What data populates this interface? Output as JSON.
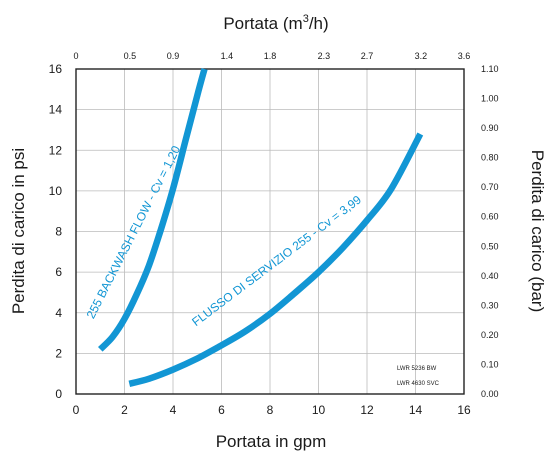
{
  "chart_data": {
    "type": "line",
    "title": "",
    "colors": {
      "series": "#1296d4",
      "frame": "#222222",
      "grid": "#bbbbbb"
    },
    "grid": true,
    "xlabel": "Portata in gpm",
    "ylabel": "Perdita di carico in psi",
    "x2label_main": "Portata (m",
    "x2label_sup": "3",
    "x2label_tail": "/h)",
    "y2label": "Perdita di carico (bar)",
    "xlim": [
      0,
      16
    ],
    "ylim": [
      0,
      16
    ],
    "x_ticks": [
      0,
      2,
      4,
      6,
      8,
      10,
      12,
      14,
      16
    ],
    "x_tick_labels": [
      "0",
      "2",
      "4",
      "6",
      "8",
      "10",
      "12",
      "14",
      "16"
    ],
    "y_ticks": [
      0,
      2,
      4,
      6,
      8,
      10,
      12,
      14,
      16
    ],
    "y_tick_labels": [
      "0",
      "2",
      "4",
      "6",
      "8",
      "10",
      "12",
      "14",
      "16"
    ],
    "top_ticks": [
      0,
      0.5,
      0.9,
      1.4,
      1.8,
      2.3,
      2.7,
      3.2,
      3.6
    ],
    "top_tick_labels": [
      "0",
      "0.5",
      "0.9",
      "1.4",
      "1.8",
      "2.3",
      "2.7",
      "3.2",
      "3.6"
    ],
    "right_ticks": [
      0,
      0.1,
      0.2,
      0.3,
      0.4,
      0.5,
      0.6,
      0.7,
      0.8,
      0.9,
      1.0,
      1.1
    ],
    "right_tick_labels": [
      "0.00",
      "0.10",
      "0.20",
      "0.30",
      "0.40",
      "0.50",
      "0.60",
      "0.70",
      "0.80",
      "0.90",
      "1.00",
      "1.10"
    ],
    "series": [
      {
        "name": "255 BACKWASH FLOW - Cv = 1,20",
        "cv": 1.2,
        "x": [
          1.0,
          1.5,
          2.0,
          2.5,
          3.0,
          3.5,
          4.0,
          4.5,
          5.0,
          5.3
        ],
        "y": [
          2.2,
          2.8,
          3.7,
          4.9,
          6.3,
          8.1,
          10.1,
          12.4,
          14.7,
          16.0
        ]
      },
      {
        "name": "FLUSSO DI SERVIZIO 255 - Cv = 3,99",
        "cv": 3.99,
        "x": [
          2.2,
          3.0,
          4.0,
          5.0,
          6.0,
          7.0,
          8.0,
          9.0,
          10.0,
          11.0,
          12.0,
          13.0,
          14.2
        ],
        "y": [
          0.5,
          0.75,
          1.2,
          1.75,
          2.4,
          3.1,
          3.95,
          4.95,
          6.0,
          7.2,
          8.55,
          10.1,
          12.8
        ]
      }
    ],
    "annotations": [
      "LWR 5236  BW",
      "LWR 4630 SVC"
    ]
  }
}
